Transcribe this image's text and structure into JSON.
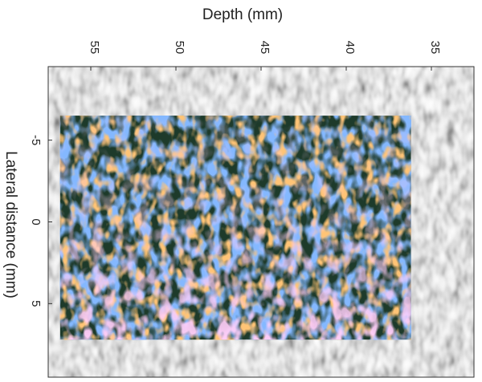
{
  "chart_data": {
    "type": "heatmap",
    "title": "",
    "xlabel": "Depth (mm)",
    "ylabel": "Lateral distance (mm)",
    "x_axis_position": "top",
    "x_reversed": true,
    "xlim": [
      57.5,
      32.5
    ],
    "ylim": [
      -9.5,
      9.5
    ],
    "x_ticks": [
      55,
      50,
      45,
      40,
      35
    ],
    "x_tick_labels": [
      "55",
      "50",
      "45",
      "40",
      "35"
    ],
    "y_ticks": [
      -5,
      0,
      5
    ],
    "y_tick_labels": [
      "-5",
      "0",
      "5"
    ],
    "grid": false,
    "legend": "none",
    "background_image": {
      "description": "grayscale B-mode ultrasound speckle",
      "x_range": [
        57.5,
        32.5
      ],
      "y_range": [
        -9.5,
        9.5
      ]
    },
    "overlay_region": {
      "description": "color-coded speckle overlay (blue, orange, pink)",
      "x_range": [
        56.8,
        36.2
      ],
      "y_range": [
        -6.5,
        7.2
      ],
      "colors": [
        "#3a7bff",
        "#ff8a2e",
        "#ff9cf0",
        "#1d3a2a"
      ]
    }
  }
}
